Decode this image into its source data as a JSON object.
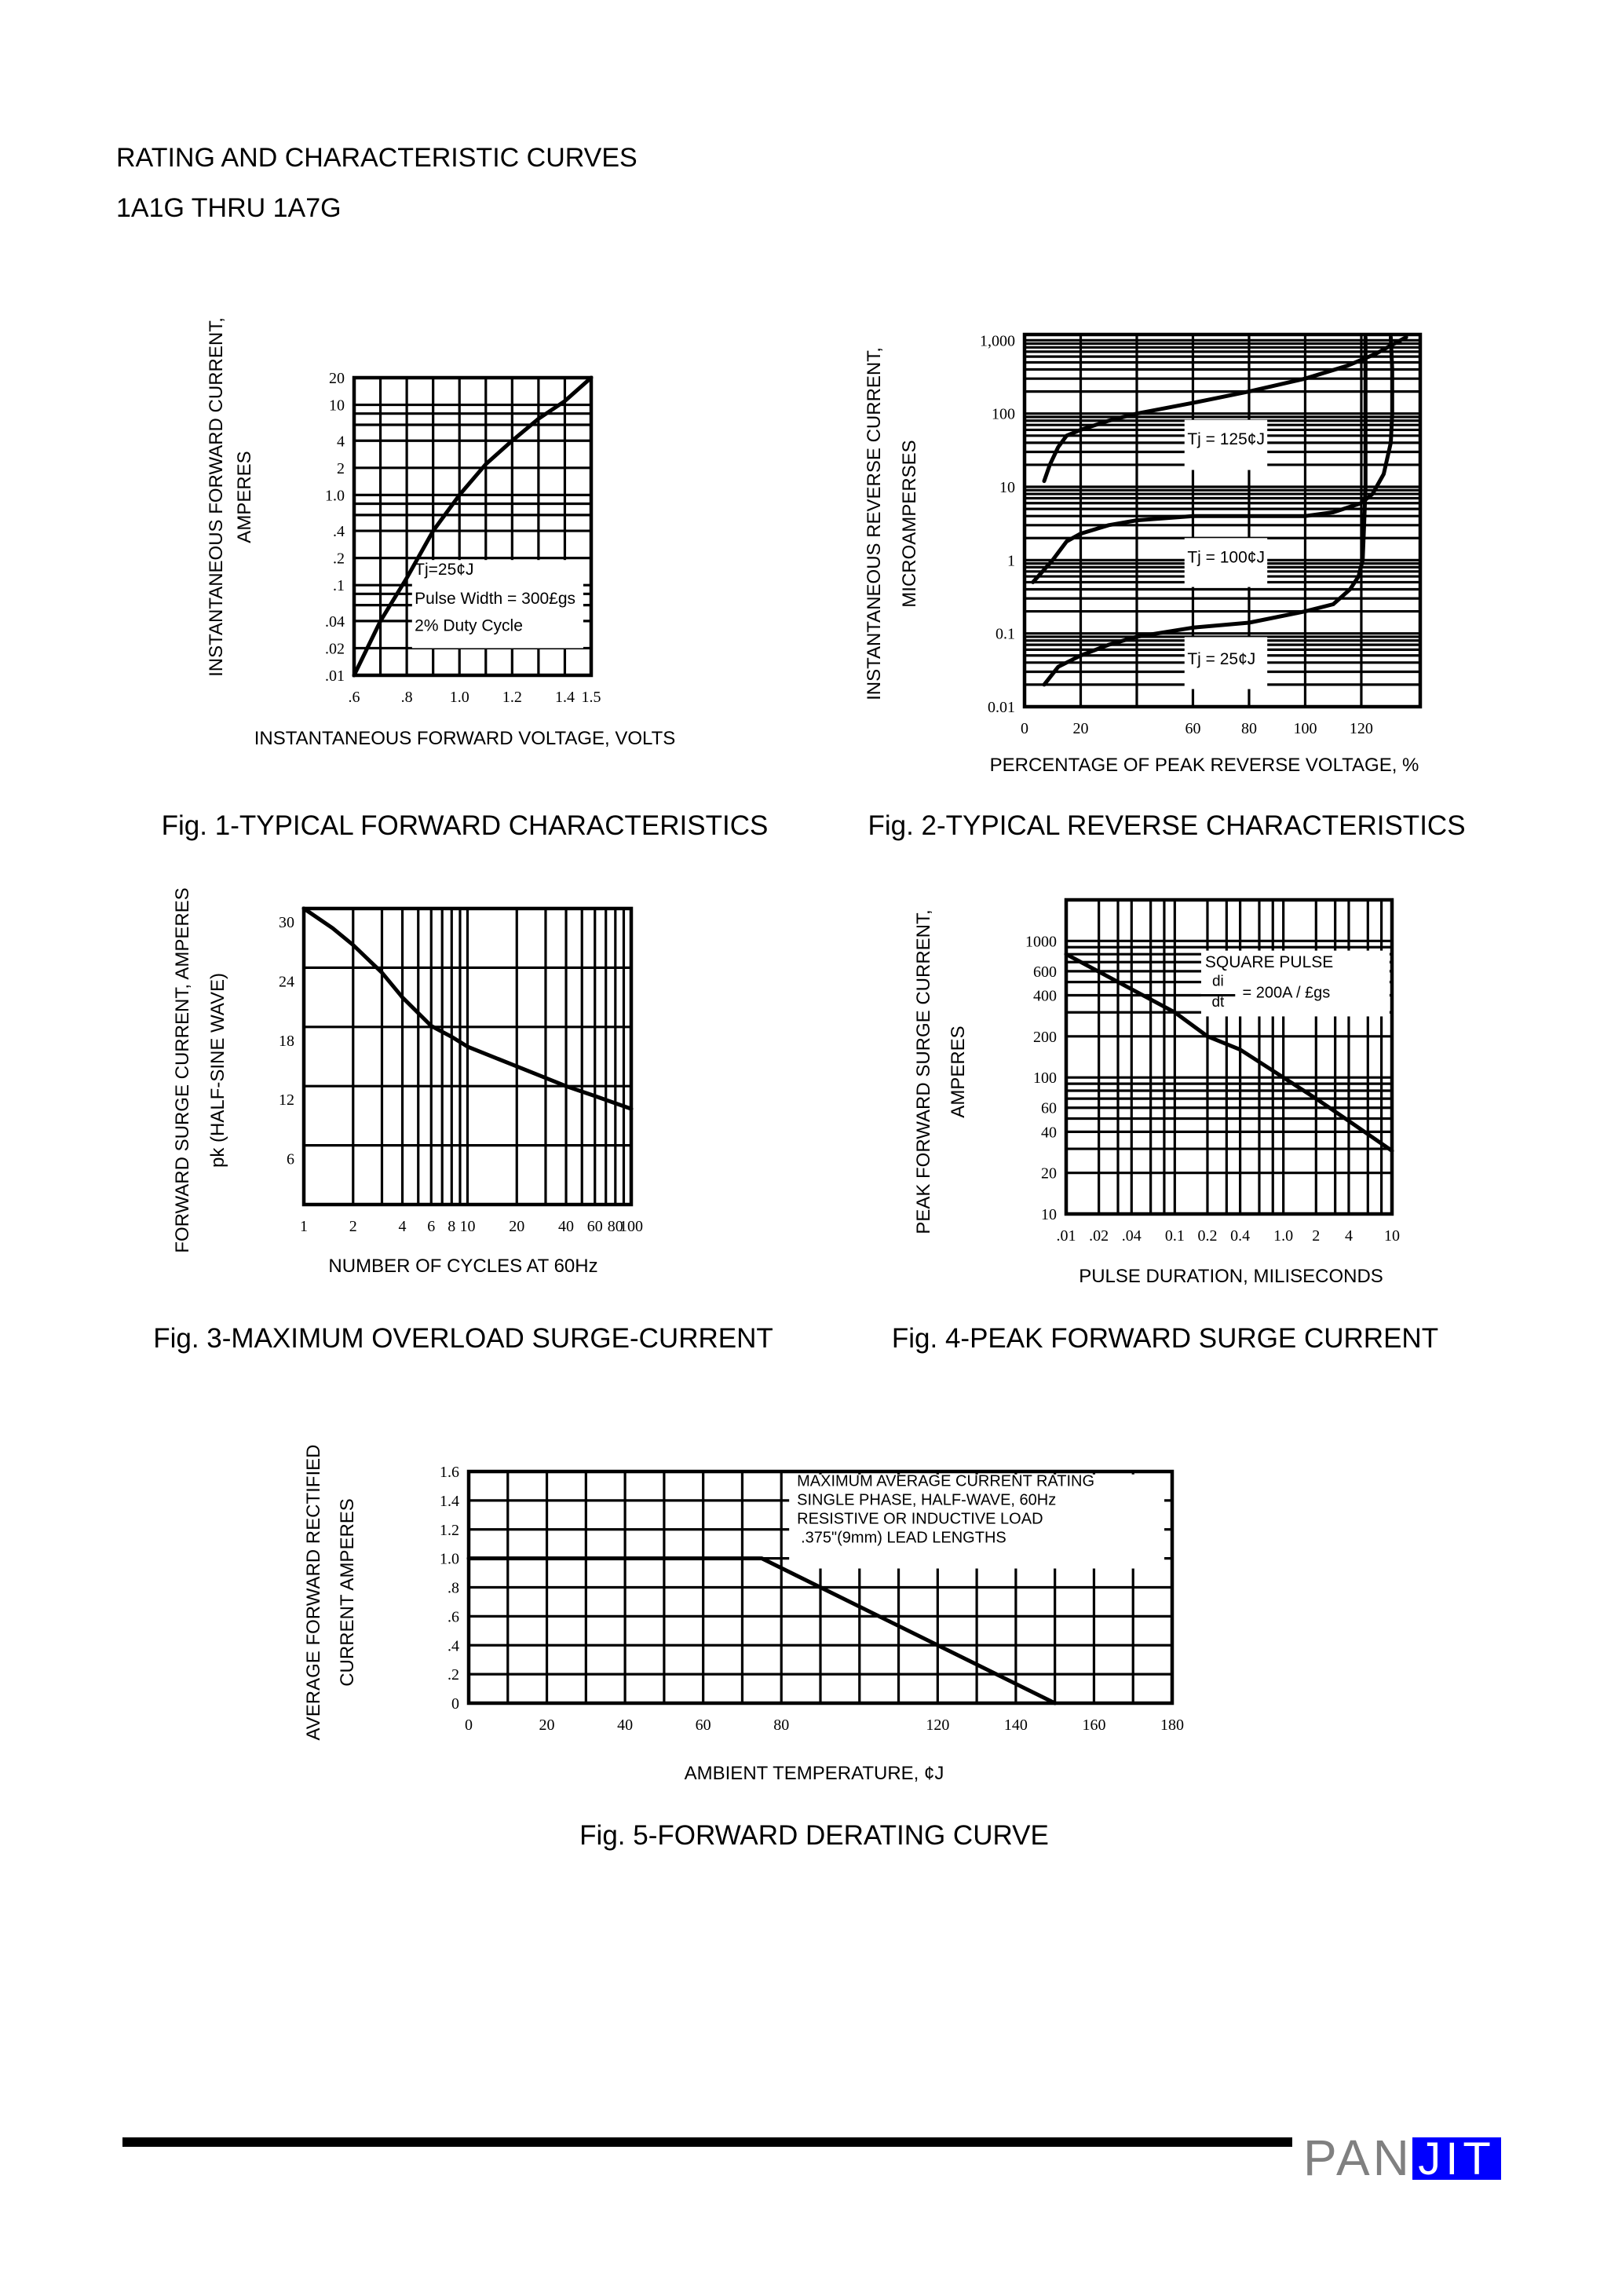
{
  "header": {
    "title": "RATING AND CHARACTERISTIC CURVES",
    "subtitle": "1A1G THRU 1A7G"
  },
  "logo": {
    "text_left": "PAN",
    "text_right": "JIT",
    "brand_color": "#0000FF",
    "gray_color": "#808080"
  },
  "chart_data": [
    {
      "type": "line",
      "caption": "Fig. 1-TYPICAL FORWARD CHARACTERISTICS",
      "ylabel": [
        "INSTANTANEOUS FORWARD CURRENT,",
        "AMPERES"
      ],
      "xlabel": "INSTANTANEOUS FORWARD VOLTAGE, VOLTS",
      "xscale": "linear",
      "yscale": "log",
      "xlim": [
        0.6,
        1.5
      ],
      "ylim": [
        0.01,
        20
      ],
      "grid": true,
      "xticks": [
        {
          "value": 0.6,
          "label": ".6"
        },
        {
          "value": 0.8,
          "label": ".8"
        },
        {
          "value": 1.0,
          "label": "1.0"
        },
        {
          "value": 1.2,
          "label": "1.2"
        },
        {
          "value": 1.4,
          "label": "1.4"
        },
        {
          "value": 1.5,
          "label": "1.5"
        }
      ],
      "yticks": [
        {
          "value": 20,
          "label": "20"
        },
        {
          "value": 10,
          "label": "10"
        },
        {
          "value": 4,
          "label": "4"
        },
        {
          "value": 2,
          "label": "2"
        },
        {
          "value": 1,
          "label": "1.0"
        },
        {
          "value": 0.4,
          "label": ".4"
        },
        {
          "value": 0.2,
          "label": ".2"
        },
        {
          "value": 0.1,
          "label": ".1"
        },
        {
          "value": 0.04,
          "label": ".04"
        },
        {
          "value": 0.02,
          "label": ".02"
        },
        {
          "value": 0.01,
          "label": ".01"
        }
      ],
      "annotation": [
        "Tj=25¢J",
        "Pulse Width = 300£gs",
        "2% Duty Cycle"
      ],
      "series": [
        {
          "x": [
            0.6,
            0.7,
            0.8,
            0.9,
            1.0,
            1.1,
            1.2,
            1.3,
            1.4,
            1.5
          ],
          "y": [
            0.01,
            0.04,
            0.12,
            0.4,
            1.0,
            2.2,
            4,
            7,
            11,
            20
          ]
        }
      ]
    },
    {
      "type": "line",
      "caption": "Fig. 2-TYPICAL REVERSE CHARACTERISTICS",
      "ylabel": [
        "INSTANTANEOUS REVERSE CURRENT,",
        "MICROAMPERSES"
      ],
      "xlabel": "PERCENTAGE OF PEAK REVERSE VOLTAGE, %",
      "xscale": "linear",
      "yscale": "log",
      "xlim": [
        0,
        141
      ],
      "ylim": [
        0.01,
        1200
      ],
      "grid": true,
      "xticks": [
        {
          "value": 0,
          "label": "0"
        },
        {
          "value": 20,
          "label": "20"
        },
        {
          "value": 60,
          "label": "60"
        },
        {
          "value": 80,
          "label": "80"
        },
        {
          "value": 100,
          "label": "100"
        },
        {
          "value": 120,
          "label": "120"
        }
      ],
      "yticks": [
        {
          "value": 1000,
          "label": "1,000"
        },
        {
          "value": 100,
          "label": "100"
        },
        {
          "value": 10,
          "label": "10"
        },
        {
          "value": 1,
          "label": "1"
        },
        {
          "value": 0.1,
          "label": "0.1"
        },
        {
          "value": 0.01,
          "label": "0.01"
        }
      ],
      "series": [
        {
          "name": "Tj = 125¢J",
          "x": [
            7,
            9,
            12,
            15,
            20,
            30,
            40,
            60,
            80,
            100,
            115,
            125,
            136
          ],
          "y": [
            12,
            20,
            35,
            50,
            60,
            80,
            100,
            140,
            200,
            300,
            450,
            650,
            1100
          ]
        },
        {
          "name": "Tj = 100¢J",
          "x": [
            3,
            10,
            15,
            20,
            30,
            40,
            60,
            80,
            100,
            110,
            120,
            124,
            128,
            130.5,
            131,
            131,
            130.5
          ],
          "y": [
            0.5,
            1,
            1.8,
            2.3,
            3,
            3.5,
            4,
            4,
            4,
            4.5,
            6,
            8,
            15,
            40,
            100,
            400,
            1100
          ]
        },
        {
          "name": "Tj = 25¢J",
          "x": [
            7,
            12,
            20,
            30,
            40,
            60,
            80,
            100,
            110,
            116,
            119,
            120.5,
            121,
            121.5,
            121.5,
            121.5
          ],
          "y": [
            0.02,
            0.035,
            0.05,
            0.07,
            0.09,
            0.12,
            0.14,
            0.2,
            0.25,
            0.4,
            0.6,
            1,
            3,
            10,
            100,
            1100
          ]
        }
      ]
    },
    {
      "type": "line",
      "caption": "Fig. 3-MAXIMUM OVERLOAD SURGE-CURRENT",
      "ylabel": [
        "FORWARD SURGE CURRENT, AMPERES",
        "pk (HALF-SINE WAVE)"
      ],
      "xlabel": "NUMBER OF CYCLES AT 60Hz",
      "xscale": "log",
      "yscale": "linear",
      "xlim": [
        1,
        100
      ],
      "ylim": [
        0,
        30
      ],
      "grid": true,
      "xticks": [
        {
          "value": 1,
          "label": "1"
        },
        {
          "value": 2,
          "label": "2"
        },
        {
          "value": 4,
          "label": "4"
        },
        {
          "value": 6,
          "label": "6"
        },
        {
          "value": 8,
          "label": "8"
        },
        {
          "value": 10,
          "label": "10"
        },
        {
          "value": 20,
          "label": "20"
        },
        {
          "value": 40,
          "label": "40"
        },
        {
          "value": 60,
          "label": "60"
        },
        {
          "value": 80,
          "label": "80"
        },
        {
          "value": 100,
          "label": "100"
        }
      ],
      "yticks": [
        {
          "value": 30,
          "label": "30"
        },
        {
          "value": 24,
          "label": "24"
        },
        {
          "value": 18,
          "label": "18"
        },
        {
          "value": 12,
          "label": "12"
        },
        {
          "value": 6,
          "label": "6"
        }
      ],
      "series": [
        {
          "x": [
            1,
            1.5,
            2,
            3,
            4,
            6,
            8,
            10,
            20,
            40,
            60,
            100
          ],
          "y": [
            30,
            28,
            26.3,
            23.5,
            21,
            18.1,
            17,
            16,
            14,
            12,
            11,
            9.7
          ]
        }
      ]
    },
    {
      "type": "line",
      "caption": "Fig. 4-PEAK FORWARD SURGE CURRENT",
      "ylabel": [
        "PEAK FORWARD SURGE CURRENT,",
        "AMPERES"
      ],
      "xlabel": "PULSE DURATION, MILISECONDS",
      "xscale": "log",
      "yscale": "log",
      "xlim": [
        0.01,
        10
      ],
      "ylim": [
        10,
        2000
      ],
      "grid": true,
      "xticks": [
        {
          "value": 0.01,
          "label": ".01"
        },
        {
          "value": 0.02,
          "label": ".02"
        },
        {
          "value": 0.04,
          "label": ".04"
        },
        {
          "value": 0.1,
          "label": "0.1"
        },
        {
          "value": 0.2,
          "label": "0.2"
        },
        {
          "value": 0.4,
          "label": "0.4"
        },
        {
          "value": 1,
          "label": "1.0"
        },
        {
          "value": 2,
          "label": "2"
        },
        {
          "value": 4,
          "label": "4"
        },
        {
          "value": 10,
          "label": "10"
        }
      ],
      "yticks": [
        {
          "value": 1000,
          "label": "1000"
        },
        {
          "value": 600,
          "label": "600"
        },
        {
          "value": 400,
          "label": "400"
        },
        {
          "value": 200,
          "label": "200"
        },
        {
          "value": 100,
          "label": "100"
        },
        {
          "value": 60,
          "label": "60"
        },
        {
          "value": 40,
          "label": "40"
        },
        {
          "value": 20,
          "label": "20"
        },
        {
          "value": 10,
          "label": "10"
        }
      ],
      "annotation": {
        "title": "SQUARE PULSE",
        "numerator": "di",
        "denominator": "dt",
        "value": "= 200A / £gs"
      },
      "series": [
        {
          "x": [
            0.01,
            0.1,
            0.2,
            0.4,
            1,
            2,
            4,
            10
          ],
          "y": [
            800,
            300,
            200,
            160,
            100,
            70,
            48,
            29
          ]
        }
      ]
    },
    {
      "type": "line",
      "caption": "Fig. 5-FORWARD DERATING CURVE",
      "ylabel": [
        "AVERAGE FORWARD RECTIFIED",
        "CURRENT AMPERES"
      ],
      "xlabel": "AMBIENT TEMPERATURE, ¢J",
      "xscale": "linear",
      "yscale": "linear",
      "xlim": [
        0,
        180
      ],
      "ylim": [
        0,
        1.6
      ],
      "grid": true,
      "xticks": [
        {
          "value": 0,
          "label": "0"
        },
        {
          "value": 20,
          "label": "20"
        },
        {
          "value": 40,
          "label": "40"
        },
        {
          "value": 60,
          "label": "60"
        },
        {
          "value": 80,
          "label": "80"
        },
        {
          "value": 120,
          "label": "120"
        },
        {
          "value": 140,
          "label": "140"
        },
        {
          "value": 160,
          "label": "160"
        },
        {
          "value": 180,
          "label": "180"
        }
      ],
      "yticks": [
        {
          "value": 1.6,
          "label": "1.6"
        },
        {
          "value": 1.4,
          "label": "1.4"
        },
        {
          "value": 1.2,
          "label": "1.2"
        },
        {
          "value": 1.0,
          "label": "1.0"
        },
        {
          "value": 0.8,
          "label": ".8"
        },
        {
          "value": 0.6,
          "label": ".6"
        },
        {
          "value": 0.4,
          "label": ".4"
        },
        {
          "value": 0.2,
          "label": ".2"
        },
        {
          "value": 0,
          "label": "0"
        }
      ],
      "annotation": [
        "MAXIMUM AVERAGE CURRENT RATING",
        "SINGLE PHASE, HALF-WAVE, 60Hz",
        "RESISTIVE OR INDUCTIVE LOAD",
        ".375\"(9mm) LEAD LENGTHS"
      ],
      "series": [
        {
          "x": [
            0,
            75,
            150
          ],
          "y": [
            1.0,
            1.0,
            0
          ]
        }
      ]
    }
  ]
}
